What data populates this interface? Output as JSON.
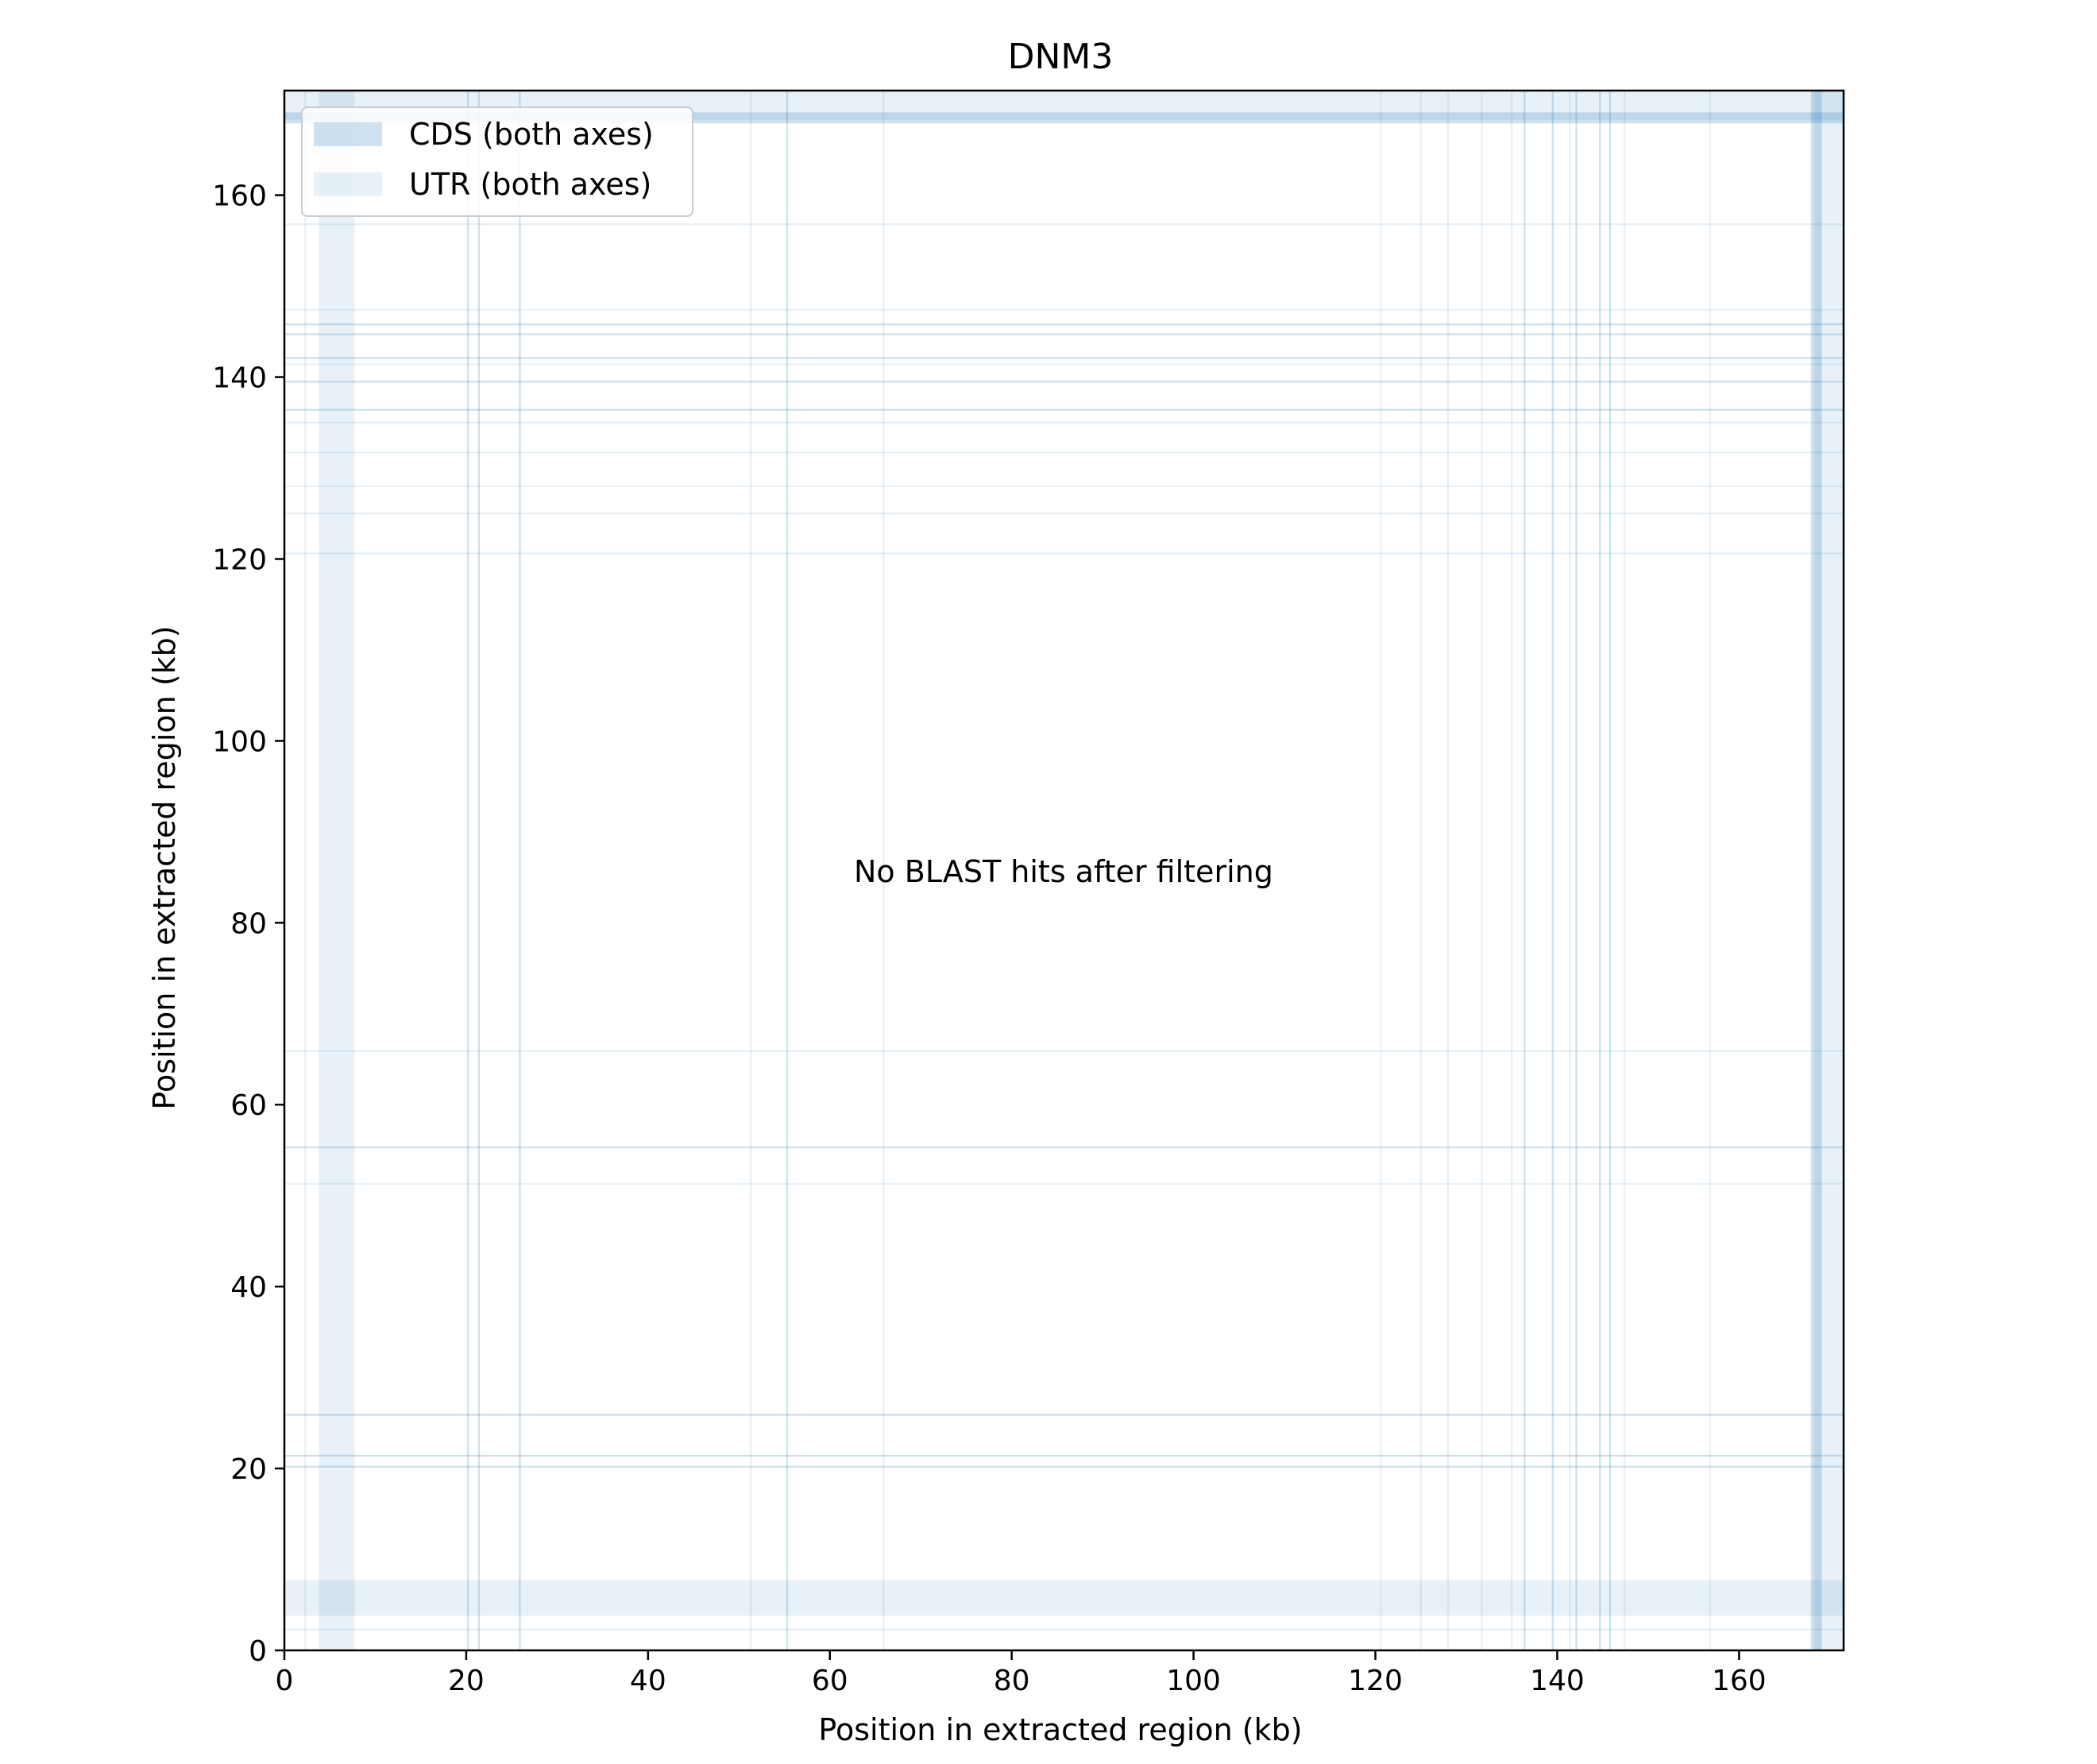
{
  "chart_data": {
    "type": "heatmap",
    "title": "DNM3",
    "xlabel": "Position in extracted region (kb)",
    "ylabel": "Position in extracted region (kb)",
    "xlim": [
      0,
      171.5
    ],
    "ylim": [
      0,
      171.5
    ],
    "x_ticks": [
      0,
      20,
      40,
      60,
      80,
      100,
      120,
      140,
      160
    ],
    "y_ticks": [
      0,
      20,
      40,
      60,
      80,
      100,
      120,
      140,
      160
    ],
    "grid": false,
    "annotation": {
      "text": "No BLAST hits after filtering",
      "x": 85.7,
      "y": 85.7
    },
    "legend": {
      "location": "upper-left",
      "entries": [
        {
          "label": "CDS (both axes)",
          "kind": "CDS",
          "color": "#1f77b4",
          "alpha": 0.22
        },
        {
          "label": "UTR (both axes)",
          "kind": "UTR",
          "color": "#1f77b4",
          "alpha": 0.1
        }
      ]
    },
    "feature_spans": [
      {
        "kind": "UTR",
        "start": 3.8,
        "end": 7.7
      },
      {
        "kind": "CDS",
        "start": 20.1,
        "end": 20.3
      },
      {
        "kind": "CDS",
        "start": 21.3,
        "end": 21.5
      },
      {
        "kind": "CDS",
        "start": 25.8,
        "end": 26.0
      },
      {
        "kind": "CDS",
        "start": 55.2,
        "end": 55.4
      },
      {
        "kind": "CDS",
        "start": 136.3,
        "end": 136.5
      },
      {
        "kind": "CDS",
        "start": 139.4,
        "end": 139.6
      },
      {
        "kind": "CDS",
        "start": 142.0,
        "end": 142.2
      },
      {
        "kind": "CDS",
        "start": 144.6,
        "end": 144.8
      },
      {
        "kind": "CDS",
        "start": 145.7,
        "end": 145.9
      },
      {
        "kind": "CDS",
        "start": 167.9,
        "end": 169.1
      },
      {
        "kind": "UTR",
        "start": 2.2,
        "end": 2.4
      },
      {
        "kind": "UTR",
        "start": 51.2,
        "end": 51.4
      },
      {
        "kind": "UTR",
        "start": 65.8,
        "end": 66.0
      },
      {
        "kind": "UTR",
        "start": 120.5,
        "end": 120.7
      },
      {
        "kind": "UTR",
        "start": 124.9,
        "end": 125.1
      },
      {
        "kind": "UTR",
        "start": 127.9,
        "end": 128.1
      },
      {
        "kind": "UTR",
        "start": 131.6,
        "end": 131.8
      },
      {
        "kind": "UTR",
        "start": 134.9,
        "end": 135.1
      },
      {
        "kind": "UTR",
        "start": 141.3,
        "end": 141.5
      },
      {
        "kind": "UTR",
        "start": 147.3,
        "end": 147.5
      },
      {
        "kind": "UTR",
        "start": 156.7,
        "end": 156.9
      },
      {
        "kind": "UTR",
        "start": 168.3,
        "end": 171.5
      }
    ]
  }
}
